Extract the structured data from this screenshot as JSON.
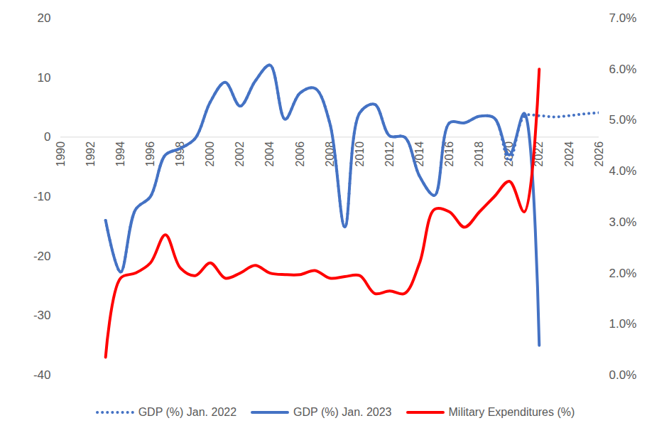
{
  "chart_data": {
    "type": "line",
    "x": [
      1993,
      1994,
      1995,
      1996,
      1997,
      1998,
      1999,
      2000,
      2001,
      2002,
      2003,
      2004,
      2005,
      2006,
      2007,
      2008,
      2009,
      2010,
      2011,
      2012,
      2013,
      2014,
      2015,
      2016,
      2017,
      2018,
      2019,
      2020,
      2021,
      2022,
      2023,
      2024,
      2025,
      2026
    ],
    "xlim": [
      1990,
      2026
    ],
    "xticks": [
      1990,
      1992,
      1994,
      1996,
      1998,
      2000,
      2002,
      2004,
      2006,
      2008,
      2010,
      2012,
      2014,
      2016,
      2018,
      2020,
      2022,
      2024,
      2026
    ],
    "ylim": [
      -40,
      20
    ],
    "yticks": [
      -40,
      -30,
      -20,
      -10,
      0,
      10,
      20
    ],
    "y2lim": [
      0,
      7
    ],
    "y2ticks": [
      {
        "value": 0,
        "label": "0.0%"
      },
      {
        "value": 1,
        "label": "1.0%"
      },
      {
        "value": 2,
        "label": "2.0%"
      },
      {
        "value": 3,
        "label": "3.0%"
      },
      {
        "value": 4,
        "label": "4.0%"
      },
      {
        "value": 5,
        "label": "5.0%"
      },
      {
        "value": 6,
        "label": "6.0%"
      },
      {
        "value": 7,
        "label": "7.0%"
      }
    ],
    "grid": false,
    "legend": "bottom",
    "series": [
      {
        "name": "GDP (%) Jan. 2022",
        "color": "#4472c4",
        "line_style": "dotted",
        "values": [
          -14,
          -22.7,
          -12.2,
          -10,
          -3,
          -1.9,
          -0.2,
          5.9,
          9.2,
          5.2,
          9.4,
          12.1,
          3.0,
          7.4,
          8.2,
          2.3,
          -15.1,
          4.1,
          5.5,
          0.2,
          0.0,
          -6.6,
          -9.8,
          2.4,
          2.4,
          3.5,
          3.2,
          -4,
          3.5,
          3.6,
          3.4,
          3.6,
          3.9,
          4.1
        ]
      },
      {
        "name": "GDP (%) Jan. 2023",
        "color": "#4472c4",
        "line_style": "solid",
        "values": [
          -14,
          -22.7,
          -12.2,
          -10,
          -3,
          -1.9,
          -0.2,
          5.9,
          9.2,
          5.2,
          9.4,
          12.1,
          3.0,
          7.4,
          8.2,
          2.3,
          -15.1,
          4.1,
          5.5,
          0.2,
          0.0,
          -6.6,
          -9.8,
          2.4,
          2.4,
          3.5,
          3.2,
          -3,
          4,
          -35,
          null,
          null,
          null,
          null
        ]
      },
      {
        "name": "Military Expenditures (%)",
        "color": "#ff0000",
        "line_style": "solid",
        "axis": "y2",
        "values": [
          0.35,
          1.9,
          2.0,
          2.2,
          2.75,
          2.1,
          1.95,
          2.2,
          1.9,
          2.0,
          2.15,
          2.0,
          1.97,
          1.97,
          2.05,
          1.9,
          1.93,
          1.95,
          1.6,
          1.65,
          1.6,
          2.2,
          3.25,
          3.2,
          2.9,
          3.2,
          3.5,
          3.8,
          3.2,
          6.0,
          null,
          null,
          null,
          null
        ]
      }
    ]
  }
}
